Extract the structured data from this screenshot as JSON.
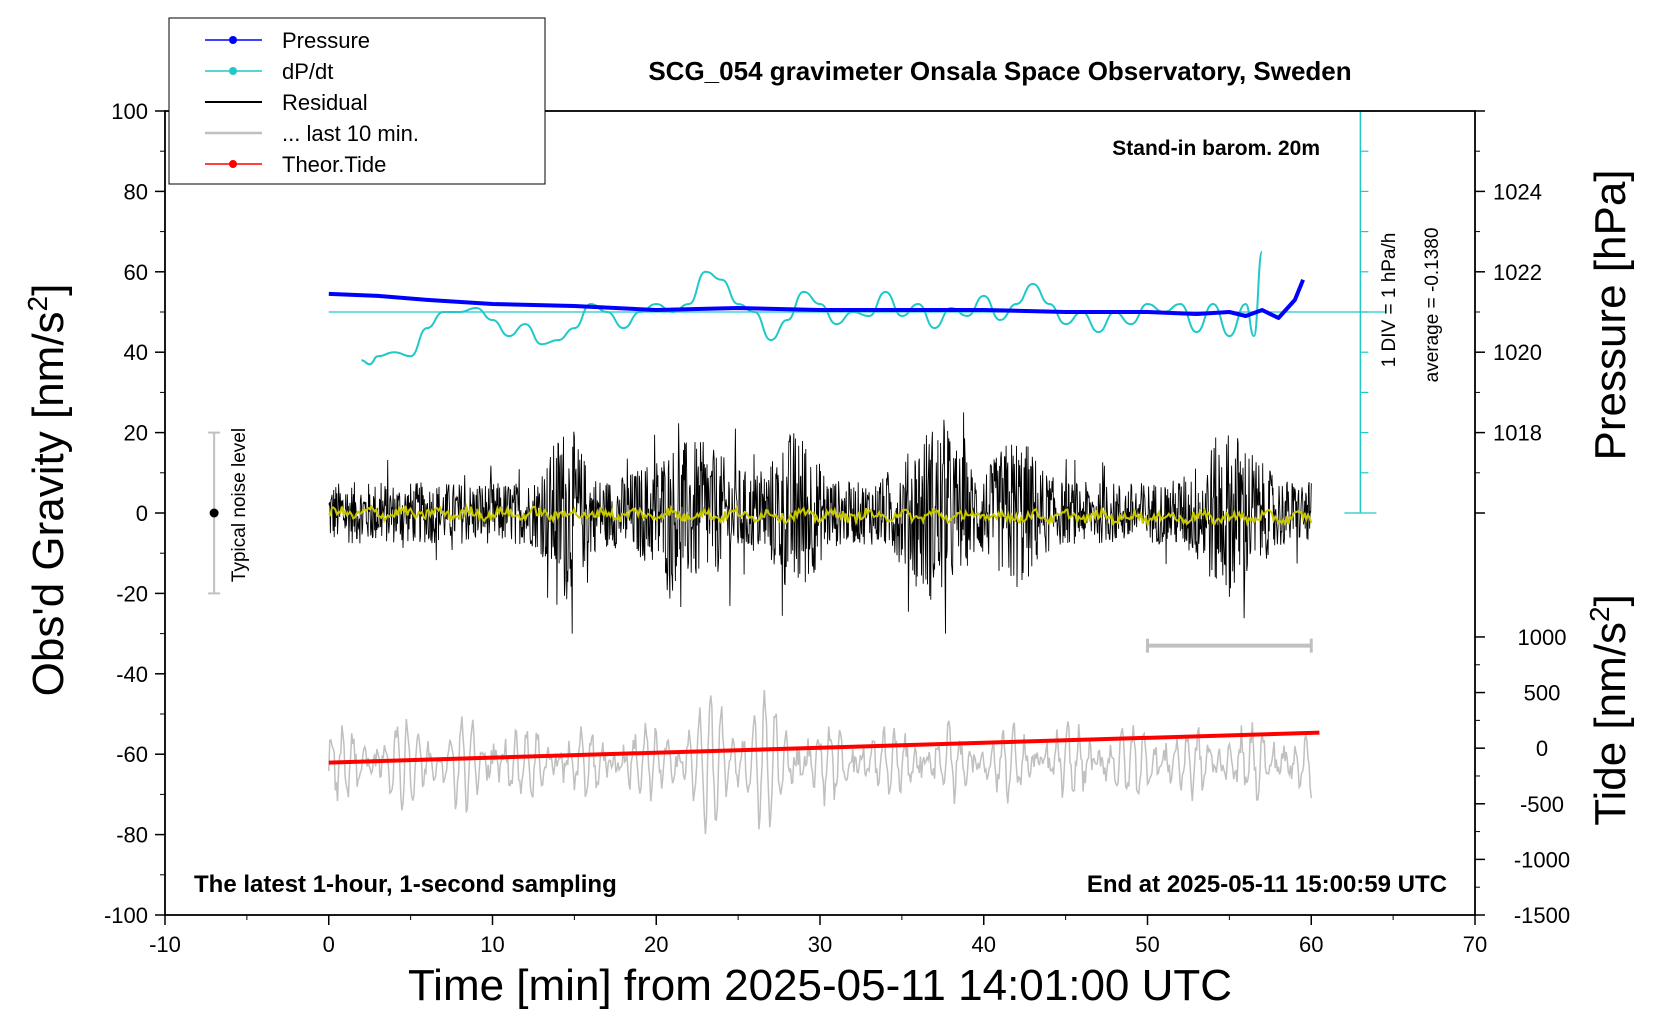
{
  "chart_data": {
    "type": "line",
    "title": "SCG_054 gravimeter Onsala Space Observatory, Sweden",
    "xlabel": "Time [min] from 2025-05-11 14:01:00 UTC",
    "ylabel_main": "Obs'd Gravity [nm/s",
    "ylabel_main_sup": "2",
    "ylabel_main_close": "]",
    "ylabel_pressure": "Pressure [hPa]",
    "ylabel_tide": "Tide [nm/s",
    "ylabel_tide_sup": "2",
    "ylabel_tide_close": "]",
    "xlim": [
      -10,
      70
    ],
    "ylim": [
      -100,
      100
    ],
    "x_ticks": [
      "-10",
      "0",
      "10",
      "20",
      "30",
      "40",
      "50",
      "60",
      "70"
    ],
    "y_ticks": [
      "-100",
      "-80",
      "-60",
      "-40",
      "-20",
      "0",
      "20",
      "40",
      "60",
      "80",
      "100"
    ],
    "pressure_axis": {
      "range": [
        1016,
        1026
      ],
      "ticks": [
        "1018",
        "1020",
        "1022",
        "1024"
      ]
    },
    "tide_axis": {
      "range": [
        -1500,
        1500
      ],
      "ticks": [
        "-1500",
        "-1000",
        "-500",
        "0",
        "500",
        "1000"
      ]
    },
    "annotations": {
      "barometer": "Stand-in barom. 20m",
      "scale": "1 DIV = 1 hPa/h",
      "average": "average = -0.1380",
      "noise": "Typical noise level",
      "bottom_left": "The latest 1-hour, 1-second sampling",
      "bottom_right": "End at 2025-05-11 15:00:59 UTC"
    },
    "legend": {
      "placement": "top-left",
      "entries": [
        {
          "label": "Pressure",
          "color": "#0000ff",
          "marker": "dot"
        },
        {
          "label": "dP/dt",
          "color": "#00c8c8",
          "marker": "dot"
        },
        {
          "label": "Residual",
          "color": "#000000",
          "marker": "none"
        },
        {
          "label": "... last 10 min.",
          "color": "#c0c0c0",
          "marker": "none"
        },
        {
          "label": "Theor.Tide",
          "color": "#ff0000",
          "marker": "dot"
        }
      ]
    },
    "colors": {
      "pressure": "#0000ff",
      "dpdt": "#20c8c8",
      "residual": "#000000",
      "residual_mean": "#c8c800",
      "last10": "#c0c0c0",
      "tide": "#ff0000"
    },
    "noise_bar": {
      "x": -7,
      "y_range": [
        -20,
        20
      ],
      "center": 0
    },
    "last10_bar": {
      "x_range": [
        50,
        60
      ],
      "y": -33
    },
    "series": [
      {
        "name": "Pressure",
        "axis": "pressure",
        "x": [
          0,
          3,
          6,
          10,
          15,
          20,
          25,
          30,
          35,
          40,
          45,
          50,
          53,
          55,
          56,
          57,
          58,
          59,
          59.5
        ],
        "values": [
          1021.45,
          1021.4,
          1021.3,
          1021.2,
          1021.15,
          1021.05,
          1021.1,
          1021.05,
          1021.05,
          1021.05,
          1021.0,
          1021.0,
          1020.95,
          1021.0,
          1020.9,
          1021.05,
          1020.85,
          1021.3,
          1021.8
        ]
      },
      {
        "name": "dP/dt",
        "axis": "gravity",
        "x": [
          2,
          2.5,
          3,
          4,
          5,
          6,
          7,
          8,
          9,
          10,
          11,
          12,
          13,
          14,
          15,
          16,
          17,
          18,
          19,
          20,
          21,
          22,
          23,
          24,
          25,
          26,
          27,
          28,
          29,
          30,
          31,
          32,
          33,
          34,
          35,
          36,
          37,
          38,
          39,
          40,
          41,
          42,
          43,
          44,
          45,
          46,
          47,
          48,
          49,
          50,
          51,
          52,
          53,
          54,
          55,
          56,
          56.5,
          57
        ],
        "values": [
          38,
          37,
          39,
          40,
          39,
          46,
          50,
          50,
          51,
          48,
          44,
          47,
          42,
          43,
          46,
          52,
          50,
          46,
          50,
          52,
          50,
          52,
          60,
          58,
          52,
          50,
          43,
          48,
          55,
          52,
          47,
          50,
          49,
          55,
          49,
          52,
          46,
          51,
          49,
          54,
          48,
          52,
          57,
          52,
          47,
          50,
          45,
          50,
          47,
          52,
          50,
          52,
          45,
          52,
          44,
          52,
          44,
          65
        ]
      },
      {
        "name": "Residual",
        "x_range": [
          0,
          60
        ],
        "amplitude": [
          -30,
          30
        ]
      },
      {
        "name": "... last 10 min.",
        "x_range": [
          0,
          60
        ],
        "center": -62,
        "amplitude": [
          -86,
          -37
        ]
      },
      {
        "name": "Theor.Tide",
        "axis": "tide",
        "x": [
          0,
          60.5
        ],
        "values": [
          -130,
          140
        ]
      }
    ]
  }
}
